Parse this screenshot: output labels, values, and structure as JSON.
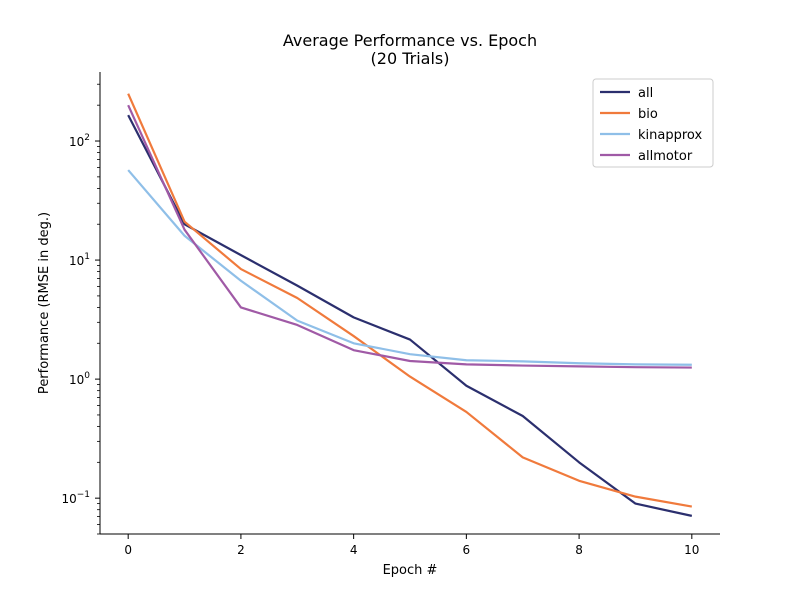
{
  "chart_data": {
    "type": "line",
    "title": "Average Performance vs. Epoch",
    "subtitle": "(20 Trials)",
    "xlabel": "Epoch #",
    "ylabel": "Performance (RMSE in deg.)",
    "xlim": [
      -0.5,
      10.5
    ],
    "ylim": [
      0.05,
      380
    ],
    "yscale": "log",
    "grid": false,
    "legend_position": "top-right",
    "x": [
      0,
      1,
      2,
      3,
      4,
      5,
      6,
      7,
      8,
      9,
      10
    ],
    "xticks": [
      0,
      2,
      4,
      6,
      8,
      10
    ],
    "xtick_labels": [
      "0",
      "2",
      "4",
      "6",
      "8",
      "10"
    ],
    "yticks": [
      {
        "value": 0.1,
        "base": "10",
        "exp": "−1"
      },
      {
        "value": 1,
        "base": "10",
        "exp": "0"
      },
      {
        "value": 10,
        "base": "10",
        "exp": "1"
      },
      {
        "value": 100,
        "base": "10",
        "exp": "2"
      }
    ],
    "series": [
      {
        "name": "all",
        "color": "#2b2f6e",
        "values": [
          165,
          20,
          11,
          6.1,
          3.3,
          2.15,
          0.88,
          0.49,
          0.2,
          0.09,
          0.071
        ]
      },
      {
        "name": "bio",
        "color": "#f07a3c",
        "values": [
          250,
          21,
          8.4,
          4.8,
          2.3,
          1.05,
          0.53,
          0.22,
          0.14,
          0.103,
          0.085
        ]
      },
      {
        "name": "kinapprox",
        "color": "#8fbfe8",
        "values": [
          57,
          16,
          6.7,
          3.1,
          2.0,
          1.62,
          1.44,
          1.41,
          1.36,
          1.33,
          1.32
        ]
      },
      {
        "name": "allmotor",
        "color": "#a05aa6",
        "values": [
          200,
          18,
          4.0,
          2.85,
          1.75,
          1.42,
          1.33,
          1.3,
          1.28,
          1.26,
          1.25
        ]
      }
    ]
  }
}
